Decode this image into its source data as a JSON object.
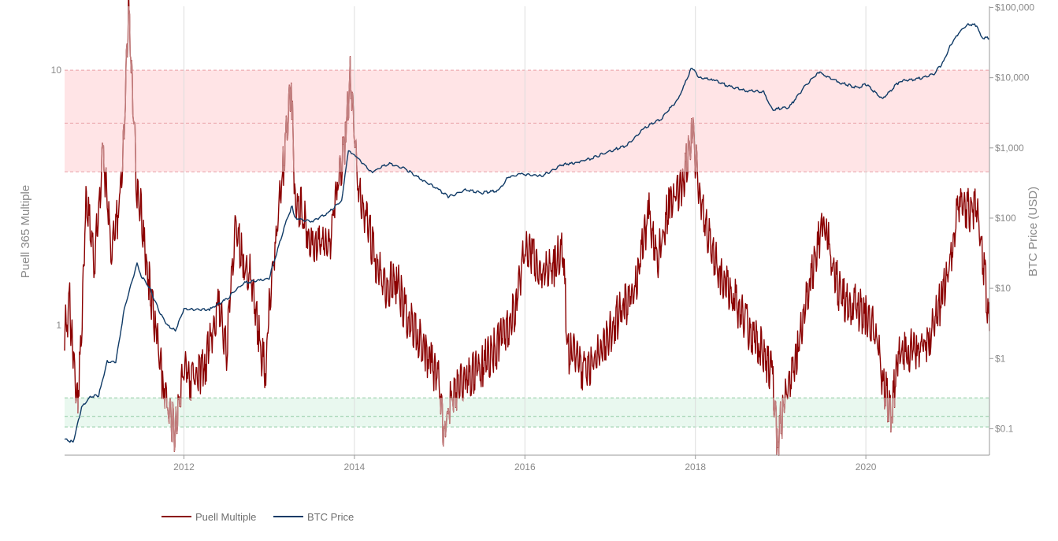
{
  "chart_data": {
    "type": "line",
    "y_left_label": "Puell 365 Multiple",
    "y_right_label": "BTC Price (USD)",
    "y_left_scale": "log",
    "y_right_scale": "log",
    "x_range": [
      2010.6,
      2021.45
    ],
    "y_left_range": [
      0.31,
      17.8
    ],
    "y_right_range": [
      0.042,
      104000
    ],
    "x_ticks": [
      {
        "value": 2012,
        "label": "2012"
      },
      {
        "value": 2014,
        "label": "2014"
      },
      {
        "value": 2016,
        "label": "2016"
      },
      {
        "value": 2018,
        "label": "2018"
      },
      {
        "value": 2020,
        "label": "2020"
      }
    ],
    "y_left_ticks": [
      {
        "value": 1,
        "label": "1"
      },
      {
        "value": 10,
        "label": "10"
      }
    ],
    "y_right_ticks": [
      {
        "value": 0.1,
        "label": "$0.1"
      },
      {
        "value": 1,
        "label": "$1"
      },
      {
        "value": 10,
        "label": "$10"
      },
      {
        "value": 100,
        "label": "$100"
      },
      {
        "value": 1000,
        "label": "$1,000"
      },
      {
        "value": 10000,
        "label": "$10,000"
      },
      {
        "value": 100000,
        "label": "$100,000"
      }
    ],
    "bands": [
      {
        "zone": "high",
        "from": 4.0,
        "to": 10.0,
        "mid": 6.2,
        "fill": "#ffe4e6",
        "line": "#e9a0a7"
      },
      {
        "zone": "low",
        "from": 0.4,
        "to": 0.52,
        "mid": 0.44,
        "fill": "#e9f8ef",
        "line": "#8fc9a2"
      }
    ],
    "grid": "vertical",
    "legend_position": "bottom-left",
    "series": [
      {
        "name": "Puell Multiple",
        "axis": "left",
        "color": "#8b0000",
        "highlight_color": "#c28080",
        "x": [
          2010.6,
          2010.66,
          2010.7,
          2010.75,
          2010.8,
          2010.85,
          2010.95,
          2011.05,
          2011.15,
          2011.25,
          2011.3,
          2011.35,
          2011.4,
          2011.45,
          2011.5,
          2011.55,
          2011.6,
          2011.68,
          2011.75,
          2011.82,
          2011.9,
          2012.0,
          2012.1,
          2012.25,
          2012.4,
          2012.5,
          2012.6,
          2012.7,
          2012.8,
          2012.9,
          2012.96,
          2013.0,
          2013.1,
          2013.2,
          2013.26,
          2013.3,
          2013.4,
          2013.5,
          2013.6,
          2013.7,
          2013.8,
          2013.9,
          2013.95,
          2014.05,
          2014.15,
          2014.25,
          2014.35,
          2014.5,
          2014.6,
          2014.75,
          2014.9,
          2015.0,
          2015.05,
          2015.15,
          2015.3,
          2015.5,
          2015.7,
          2015.9,
          2016.0,
          2016.1,
          2016.2,
          2016.35,
          2016.45,
          2016.5,
          2016.55,
          2016.7,
          2016.9,
          2017.1,
          2017.3,
          2017.45,
          2017.55,
          2017.7,
          2017.85,
          2017.96,
          2018.05,
          2018.15,
          2018.3,
          2018.45,
          2018.6,
          2018.75,
          2018.9,
          2018.96,
          2019.05,
          2019.2,
          2019.35,
          2019.5,
          2019.6,
          2019.7,
          2019.85,
          2020.0,
          2020.1,
          2020.2,
          2020.3,
          2020.38,
          2020.5,
          2020.6,
          2020.75,
          2020.9,
          2021.0,
          2021.1,
          2021.2,
          2021.3,
          2021.4,
          2021.45
        ],
        "y": [
          0.95,
          1.2,
          0.75,
          0.52,
          0.9,
          3.2,
          1.8,
          4.8,
          2.0,
          3.0,
          5.8,
          17.5,
          8.0,
          3.2,
          2.8,
          1.8,
          1.4,
          0.9,
          0.6,
          0.48,
          0.38,
          0.7,
          0.6,
          0.7,
          1.2,
          0.8,
          2.5,
          1.7,
          1.5,
          0.8,
          0.65,
          1.2,
          2.5,
          5.5,
          9.0,
          3.0,
          2.8,
          2.0,
          2.2,
          2.0,
          3.5,
          5.5,
          9.5,
          3.5,
          2.5,
          1.8,
          1.4,
          1.5,
          1.1,
          0.9,
          0.7,
          0.6,
          0.38,
          0.55,
          0.6,
          0.7,
          0.85,
          1.2,
          2.0,
          1.8,
          1.6,
          1.7,
          2.1,
          0.75,
          0.8,
          0.65,
          0.8,
          1.1,
          1.4,
          2.8,
          1.8,
          3.0,
          3.5,
          6.0,
          3.3,
          2.2,
          1.5,
          1.3,
          1.0,
          0.85,
          0.65,
          0.35,
          0.5,
          0.8,
          1.5,
          2.6,
          1.8,
          1.3,
          1.2,
          1.1,
          1.0,
          0.6,
          0.45,
          0.75,
          0.8,
          0.8,
          0.9,
          1.3,
          1.8,
          3.2,
          2.8,
          3.0,
          1.5,
          0.95
        ]
      },
      {
        "name": "BTC Price",
        "axis": "right",
        "color": "#0f3a66",
        "x": [
          2010.6,
          2010.7,
          2010.8,
          2010.9,
          2011.0,
          2011.1,
          2011.2,
          2011.3,
          2011.4,
          2011.45,
          2011.5,
          2011.6,
          2011.7,
          2011.8,
          2011.9,
          2012.0,
          2012.1,
          2012.3,
          2012.5,
          2012.7,
          2012.9,
          2013.0,
          2013.2,
          2013.27,
          2013.3,
          2013.5,
          2013.7,
          2013.85,
          2013.93,
          2014.0,
          2014.1,
          2014.2,
          2014.4,
          2014.6,
          2014.8,
          2015.0,
          2015.1,
          2015.3,
          2015.5,
          2015.7,
          2015.8,
          2015.95,
          2016.2,
          2016.45,
          2016.6,
          2016.8,
          2017.0,
          2017.2,
          2017.4,
          2017.6,
          2017.8,
          2017.96,
          2018.05,
          2018.2,
          2018.4,
          2018.6,
          2018.8,
          2018.9,
          2019.1,
          2019.3,
          2019.45,
          2019.5,
          2019.7,
          2019.9,
          2020.0,
          2020.2,
          2020.4,
          2020.6,
          2020.8,
          2020.9,
          2021.0,
          2021.1,
          2021.2,
          2021.3,
          2021.35,
          2021.45
        ],
        "y": [
          0.07,
          0.065,
          0.2,
          0.28,
          0.3,
          0.9,
          0.9,
          5,
          14,
          22,
          15,
          10,
          5,
          3,
          2.5,
          5,
          5,
          5,
          7,
          12,
          13,
          14,
          90,
          150,
          100,
          90,
          120,
          180,
          900,
          800,
          600,
          450,
          600,
          500,
          350,
          250,
          200,
          250,
          230,
          250,
          380,
          420,
          400,
          580,
          620,
          720,
          900,
          1100,
          1900,
          2600,
          5000,
          14000,
          10000,
          9500,
          7500,
          6500,
          6300,
          3500,
          3800,
          8000,
          12000,
          11000,
          8500,
          7200,
          8000,
          5000,
          9000,
          9500,
          11500,
          16000,
          30000,
          45000,
          58000,
          56000,
          38000,
          36000
        ]
      }
    ]
  },
  "legend": {
    "items": [
      {
        "label": "Puell Multiple",
        "color": "#8b0000"
      },
      {
        "label": "BTC Price",
        "color": "#0f3a66"
      }
    ]
  }
}
